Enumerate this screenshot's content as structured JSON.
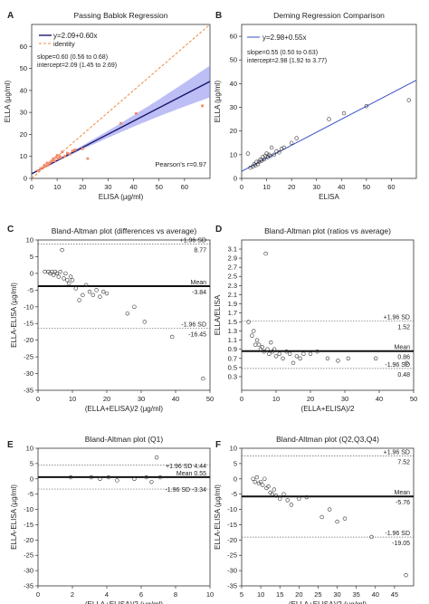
{
  "chart_data": [
    {
      "panel": "A",
      "type": "scatter",
      "title": "Passing Bablok Regression",
      "xlabel": "ELISA (µg/ml)",
      "ylabel": "ELLA (µg/ml)",
      "xlim": [
        0,
        70
      ],
      "ylim": [
        0,
        70
      ],
      "xticks": [
        0,
        10,
        20,
        30,
        40,
        50,
        60
      ],
      "yticks": [
        0,
        10,
        20,
        30,
        40,
        50,
        60
      ],
      "xtick_labels": [
        "0",
        "10",
        "20",
        "30",
        "40",
        "50",
        "60"
      ],
      "ytick_labels": [
        "0",
        "10",
        "20",
        "30",
        "40",
        "50",
        "60"
      ],
      "legend": [
        "y=2.09+0.60x",
        "identity"
      ],
      "annotations": [
        "slope=0.60 (0.56 to 0.68)",
        "intercept=2.09 (1.45 to 2.69)",
        "Pearson's r=0.97"
      ],
      "fit": {
        "intercept": 2.09,
        "slope": 0.6
      },
      "identity": {
        "intercept": 0,
        "slope": 1
      },
      "x": [
        2.5,
        3.5,
        4.5,
        5,
        5.5,
        6,
        6.5,
        7,
        7.5,
        8,
        8.5,
        9,
        9.5,
        10,
        10.5,
        11,
        11.5,
        12,
        13,
        14,
        15,
        16,
        17,
        20,
        22,
        35,
        41,
        67
      ],
      "y": [
        3.5,
        4.5,
        5,
        6,
        5.5,
        7,
        6,
        7,
        7.5,
        8,
        9,
        8,
        9.5,
        10.5,
        9,
        10,
        9.5,
        12,
        10,
        11.5,
        11,
        12.5,
        13,
        13.5,
        9,
        25,
        29.5,
        33
      ],
      "color": "#f28a6a"
    },
    {
      "panel": "B",
      "type": "scatter",
      "title": "Deming Regression Comparison",
      "xlabel": "ELISA",
      "ylabel": "ELLA (µg/ml)",
      "xlim": [
        0,
        70
      ],
      "ylim": [
        0,
        65
      ],
      "xticks": [
        0,
        10,
        20,
        30,
        40,
        50,
        60
      ],
      "yticks": [
        0,
        10,
        20,
        30,
        40,
        50,
        60
      ],
      "xtick_labels": [
        "0",
        "10",
        "20",
        "30",
        "40",
        "50",
        "60"
      ],
      "ytick_labels": [
        "0",
        "10",
        "20",
        "30",
        "40",
        "50",
        "60"
      ],
      "legend": [
        "y=2.98+0.55x"
      ],
      "annotations": [
        "slope=0.55 (0.50 to 0.63)",
        "intercept=2.98 (1.92 to 3.77)"
      ],
      "fit": {
        "intercept": 2.98,
        "slope": 0.55
      },
      "x": [
        2.5,
        3.5,
        4.5,
        5,
        5.5,
        6,
        6.5,
        7,
        7.5,
        8,
        8.5,
        9,
        9.5,
        10,
        10.5,
        11,
        11.5,
        12,
        13,
        14,
        15,
        16,
        17,
        20,
        22,
        35,
        41,
        50,
        67
      ],
      "y": [
        10.5,
        4.5,
        5,
        6,
        5.5,
        7,
        6,
        7,
        8,
        7.5,
        9,
        8,
        9.5,
        10.5,
        9,
        10,
        9.5,
        13,
        10,
        11.5,
        11,
        12.5,
        13,
        15,
        17,
        25,
        27.5,
        30.5,
        33
      ]
    },
    {
      "panel": "C",
      "type": "scatter",
      "title": "Bland-Altman plot (differences vs average)",
      "xlabel": "(ELLA+ELISA)/2 (µg/ml)",
      "ylabel": "ELLA-ELISA (µg/ml)",
      "xlim": [
        0,
        50
      ],
      "ylim": [
        -35,
        10
      ],
      "xticks": [
        0,
        10,
        20,
        30,
        40,
        50
      ],
      "yticks": [
        10,
        5,
        0,
        -5,
        -10,
        -15,
        -20,
        -25,
        -30,
        -35
      ],
      "xtick_labels": [
        "0",
        "10",
        "20",
        "30",
        "40",
        "50"
      ],
      "ytick_labels": [
        "10",
        "5",
        "0",
        "-5",
        "-10",
        "-15",
        "-20",
        "-25",
        "-30",
        "-35"
      ],
      "lines": [
        {
          "label": "+1.96 SD",
          "value_label": "8.77",
          "y": 8.77,
          "style": "dotted"
        },
        {
          "label": "Mean",
          "value_label": "-3.84",
          "y": -3.84,
          "style": "solid"
        },
        {
          "label": "-1.96 SD",
          "value_label": "-16.45",
          "y": -16.45,
          "style": "dotted"
        }
      ],
      "x": [
        2,
        3,
        3.5,
        4,
        4.5,
        5,
        5.5,
        6,
        6.5,
        7,
        7.5,
        8,
        8.5,
        9,
        9.5,
        10,
        11,
        12,
        13,
        14,
        15,
        16,
        17,
        18,
        19,
        20,
        26,
        28,
        31,
        39,
        48
      ],
      "y": [
        0.5,
        0.5,
        0,
        0.5,
        -0.5,
        0.5,
        0,
        -1,
        0.5,
        7,
        -1.5,
        0,
        -2,
        -3,
        -1,
        -2,
        -4.5,
        -8,
        -6.5,
        -3.5,
        -5.5,
        -6.5,
        -5,
        -7,
        -5.5,
        -6,
        -12,
        -10,
        -14.5,
        -19,
        -31.5
      ]
    },
    {
      "panel": "D",
      "type": "scatter",
      "title": "Bland-Altman plot (ratios vs average)",
      "xlabel": "(ELLA+ELISA)/2",
      "ylabel": "ELLA/ELISA",
      "xlim": [
        0,
        50
      ],
      "ylim": [
        0,
        3.3
      ],
      "xticks": [
        0,
        10,
        20,
        30,
        40,
        50
      ],
      "yticks": [
        0.3,
        0.5,
        0.7,
        0.9,
        1.1,
        1.3,
        1.5,
        1.7,
        1.9,
        2.1,
        2.3,
        2.5,
        2.7,
        2.9,
        3.1
      ],
      "xtick_labels": [
        "0",
        "10",
        "20",
        "30",
        "40",
        "50"
      ],
      "ytick_labels": [
        "0.3",
        "0.5",
        "0.7",
        "0.9",
        "1.1",
        "1.3",
        "1.5",
        "1.7",
        "1.9",
        "2.1",
        "2.3",
        "2.5",
        "2.7",
        "2.9",
        "3.1"
      ],
      "lines": [
        {
          "label": "+1.96 SD",
          "value_label": "1.52",
          "y": 1.52,
          "style": "dotted"
        },
        {
          "label": "Mean",
          "value_label": "0.86",
          "y": 0.86,
          "style": "solid"
        },
        {
          "label": "-1.96 SD",
          "value_label": "0.48",
          "y": 0.48,
          "style": "dotted"
        }
      ],
      "x": [
        2,
        3,
        3.5,
        4,
        4.5,
        5,
        5.5,
        6,
        6.5,
        7,
        7.5,
        8,
        8.5,
        9,
        9.5,
        10,
        11,
        12,
        13,
        14,
        15,
        16,
        17,
        18,
        20,
        22,
        25,
        28,
        31,
        39,
        48
      ],
      "y": [
        1.5,
        1.2,
        1.3,
        1.0,
        1.1,
        1.0,
        0.9,
        0.95,
        0.85,
        3.0,
        0.9,
        0.8,
        1.05,
        0.85,
        0.9,
        0.75,
        0.8,
        0.7,
        0.85,
        0.8,
        0.6,
        0.75,
        0.7,
        0.8,
        0.8,
        0.85,
        0.7,
        0.65,
        0.7,
        0.7,
        0.6
      ]
    },
    {
      "panel": "E",
      "type": "scatter",
      "title": "Bland-Altman plot (Q1)",
      "xlabel": "(ELLA+ELISA)/2 (µg/ml)",
      "ylabel": "ELLA-ELISA (µg/ml)",
      "xlim": [
        0,
        10
      ],
      "ylim": [
        -35,
        10
      ],
      "xticks": [
        0,
        2,
        4,
        6,
        8,
        10
      ],
      "yticks": [
        10,
        5,
        0,
        -5,
        -10,
        -15,
        -20,
        -25,
        -30,
        -35
      ],
      "xtick_labels": [
        "0",
        "2",
        "4",
        "6",
        "8",
        "10"
      ],
      "ytick_labels": [
        "10",
        "5",
        "0",
        "-5",
        "-10",
        "-15",
        "-20",
        "-25",
        "-30",
        "-35"
      ],
      "lines": [
        {
          "label": "+1.96 SD",
          "value_label": "4.44",
          "y": 4.44,
          "style": "dotted"
        },
        {
          "label": "Mean",
          "value_label": "0.55",
          "y": 0.55,
          "style": "solid"
        },
        {
          "label": "-1.96 SD",
          "value_label": "-3.34",
          "y": -3.34,
          "style": "dotted"
        }
      ],
      "x": [
        1.9,
        3.1,
        3.6,
        4.1,
        4.6,
        5.6,
        6.3,
        6.6,
        6.9,
        7.1
      ],
      "y": [
        0.5,
        0.5,
        0,
        0.5,
        -0.5,
        0,
        0.5,
        -1,
        7,
        0.5
      ]
    },
    {
      "panel": "F",
      "type": "scatter",
      "title": "Bland-Altman plot (Q2,Q3,Q4)",
      "xlabel": "(ELLA+ELISA)/2 (µg/ml)",
      "ylabel": "ELLA-ELISA (µg/ml)",
      "xlim": [
        5,
        50
      ],
      "ylim": [
        -35,
        10
      ],
      "xticks": [
        5,
        10,
        15,
        20,
        25,
        30,
        35,
        40,
        45
      ],
      "yticks": [
        10,
        5,
        0,
        -5,
        -10,
        -15,
        -20,
        -25,
        -30,
        -35
      ],
      "xtick_labels": [
        "5",
        "10",
        "15",
        "20",
        "25",
        "30",
        "35",
        "40",
        "45"
      ],
      "ytick_labels": [
        "10",
        "5",
        "0",
        "-5",
        "-10",
        "-15",
        "-20",
        "-25",
        "-30",
        "-35"
      ],
      "lines": [
        {
          "label": "+1.96 SD",
          "value_label": "7.52",
          "y": 7.52,
          "style": "dotted"
        },
        {
          "label": "Mean",
          "value_label": "-5.76",
          "y": -5.76,
          "style": "solid"
        },
        {
          "label": "-1.96 SD",
          "value_label": "-19.05",
          "y": -19.05,
          "style": "dotted"
        }
      ],
      "x": [
        8,
        8.5,
        9,
        9.5,
        10,
        10.5,
        11,
        11.5,
        12,
        12.5,
        13,
        13.5,
        14,
        15,
        16,
        17,
        18,
        20,
        22,
        26,
        28,
        30,
        32,
        39,
        48
      ],
      "y": [
        0,
        -1,
        0.5,
        -1.5,
        -1,
        -2,
        0,
        -3,
        -2.5,
        -4.5,
        -5,
        -3.5,
        -5.5,
        -6.5,
        -5,
        -7,
        -8.5,
        -6.5,
        -6,
        -12.5,
        -10,
        -14,
        -13,
        -19,
        -31.5
      ]
    }
  ]
}
